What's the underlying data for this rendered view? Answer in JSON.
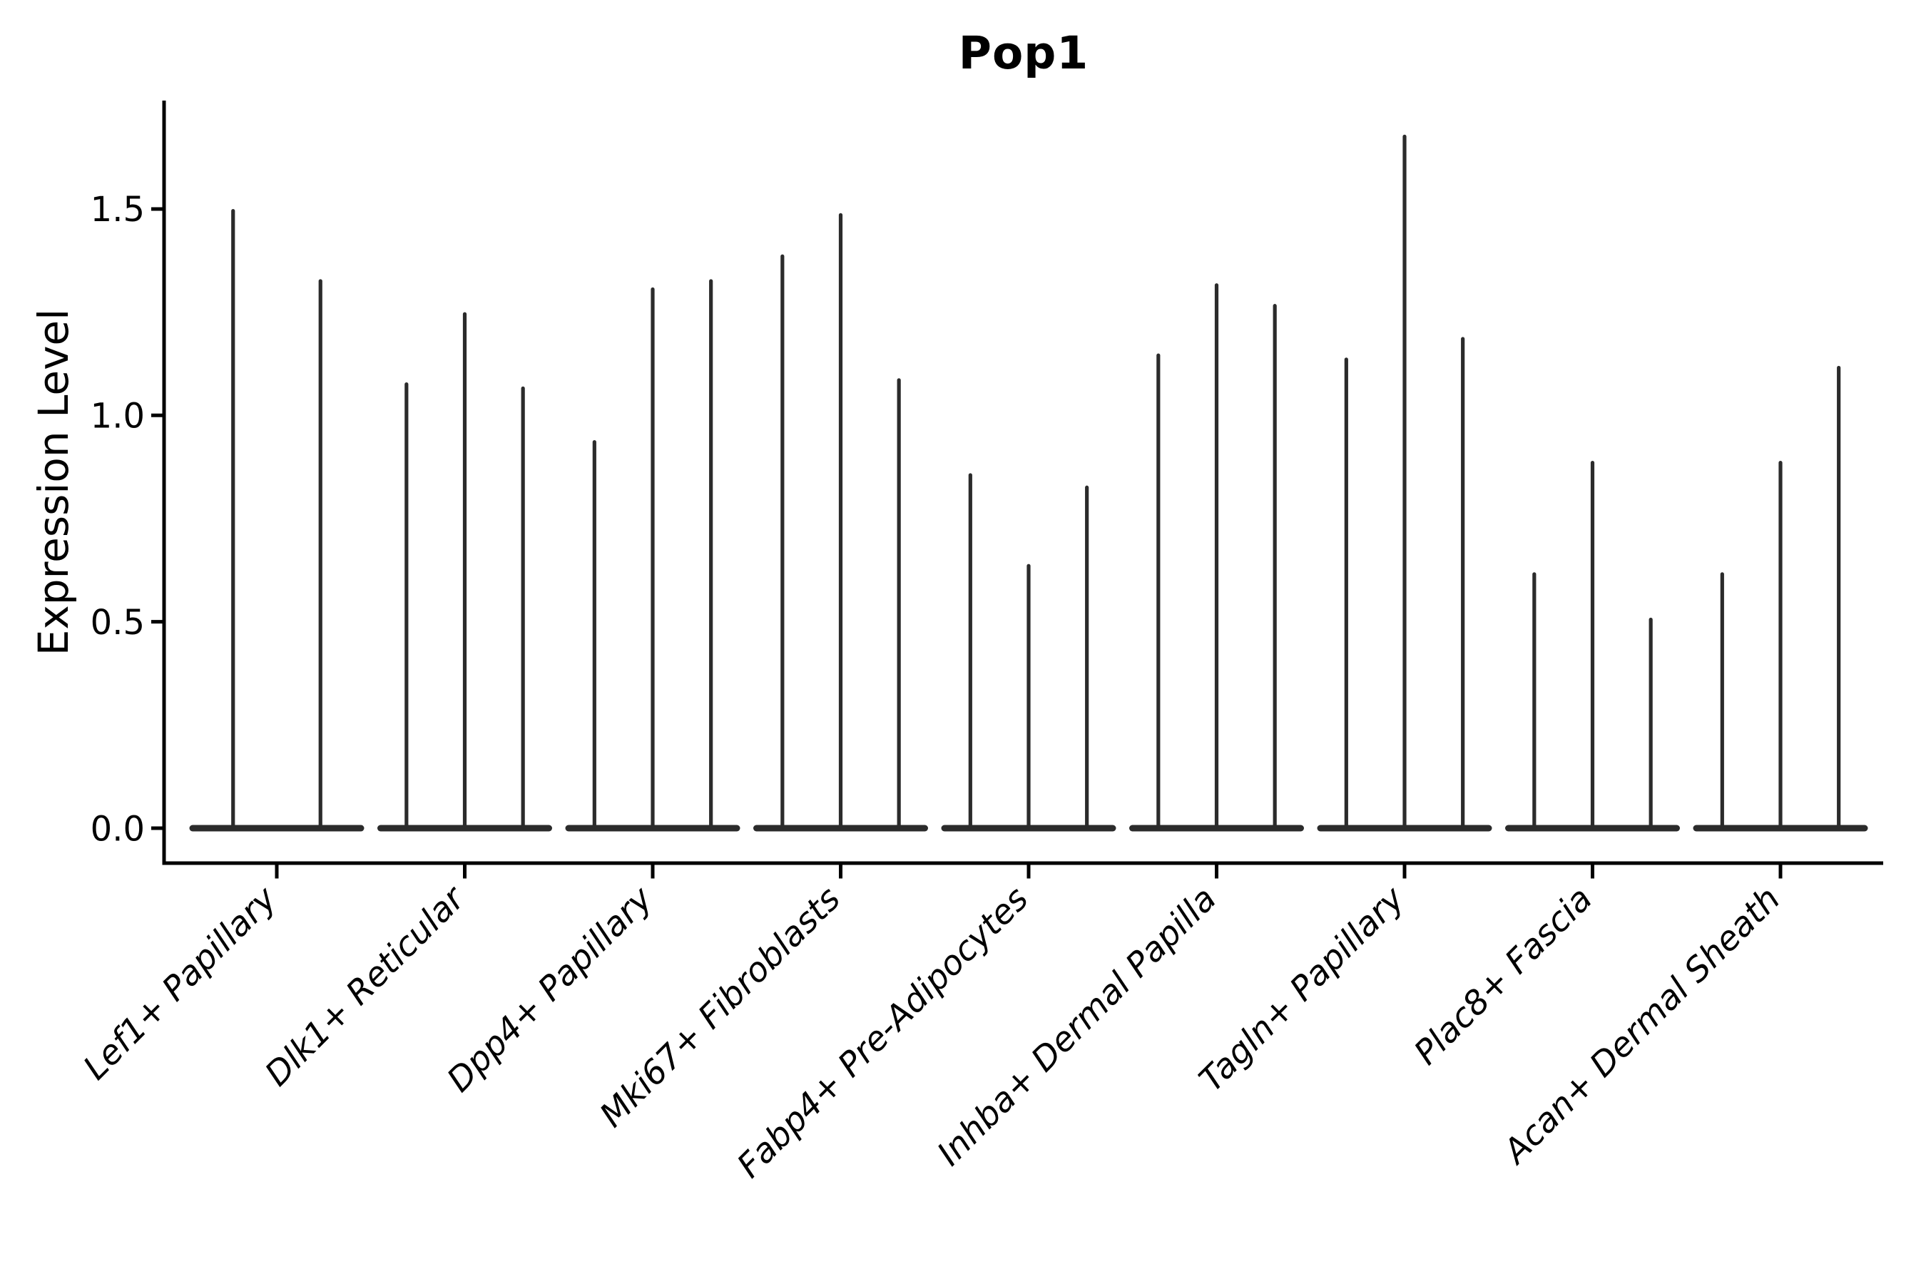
{
  "title": "Pop1",
  "y_axis": {
    "label": "Expression Level",
    "ticks": [
      "0.0",
      "0.5",
      "1.0",
      "1.5"
    ],
    "tick_values": [
      0.0,
      0.5,
      1.0,
      1.5
    ]
  },
  "colors": {
    "background": "#ffffff",
    "axis": "#000000",
    "text": "#000000",
    "violin": "#2b2b2b"
  },
  "chart_data": {
    "type": "violin",
    "title": "Pop1",
    "xlabel": "",
    "ylabel": "Expression Level",
    "ylim": [
      -0.09,
      1.76
    ],
    "yticks": [
      0.0,
      0.5,
      1.0,
      1.5
    ],
    "grid": false,
    "legend": "none",
    "categories": [
      "Lef1+ Papillary",
      "Dlk1+ Reticular",
      "Dpp4+ Papillary",
      "Mki67+ Fibroblasts",
      "Fabp4+ Pre-Adipocytes",
      "Inhba+ Dermal Papilla",
      "Tagln+ Papillary",
      "Plac8+ Fascia",
      "Acan+ Dermal Sheath"
    ],
    "groups": [
      {
        "category": "Lef1+ Papillary",
        "violin_maxima": [
          1.5,
          1.33
        ]
      },
      {
        "category": "Dlk1+ Reticular",
        "violin_maxima": [
          1.08,
          1.25,
          1.07
        ]
      },
      {
        "category": "Dpp4+ Papillary",
        "violin_maxima": [
          0.94,
          1.31,
          1.33
        ]
      },
      {
        "category": "Mki67+ Fibroblasts",
        "violin_maxima": [
          1.39,
          1.49,
          1.09
        ]
      },
      {
        "category": "Fabp4+ Pre-Adipocytes",
        "violin_maxima": [
          0.86,
          0.64,
          0.83
        ]
      },
      {
        "category": "Inhba+ Dermal Papilla",
        "violin_maxima": [
          1.15,
          1.32,
          1.27
        ]
      },
      {
        "category": "Tagln+ Papillary",
        "violin_maxima": [
          1.14,
          1.68,
          1.19
        ]
      },
      {
        "category": "Plac8+ Fascia",
        "violin_maxima": [
          0.62,
          0.89,
          0.51
        ]
      },
      {
        "category": "Acan+ Dermal Sheath",
        "violin_maxima": [
          0.62,
          0.89,
          1.12
        ]
      }
    ],
    "description": "Violin plot; each violin mass is collapsed at 0 with a thin spike rising to its maximum expression value"
  }
}
